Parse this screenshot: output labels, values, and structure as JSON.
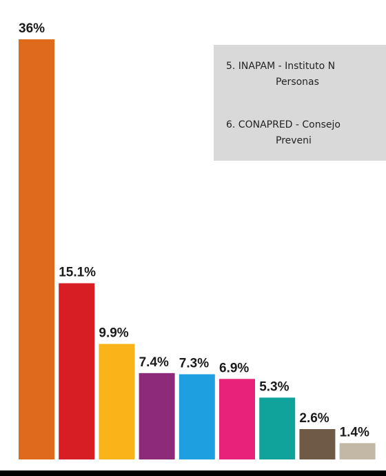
{
  "chart_data": {
    "type": "bar",
    "values": [
      36,
      15.1,
      9.9,
      7.4,
      7.3,
      6.9,
      5.3,
      2.6,
      1.4
    ],
    "value_labels": [
      "36%",
      "15.1%",
      "9.9%",
      "7.4%",
      "7.3%",
      "6.9%",
      "5.3%",
      "2.6%",
      "1.4%"
    ],
    "colors": [
      "#e06a1c",
      "#d81e25",
      "#fbb31a",
      "#8e2a7a",
      "#1ea0e0",
      "#e8217a",
      "#10a39b",
      "#6e5a45",
      "#c3b8a6"
    ],
    "ylim": [
      0,
      36
    ],
    "annotations": [
      "5. INAPAM - Instituto N",
      "Personas",
      "6. CONAPRED - Consejo",
      "Preveni"
    ]
  }
}
